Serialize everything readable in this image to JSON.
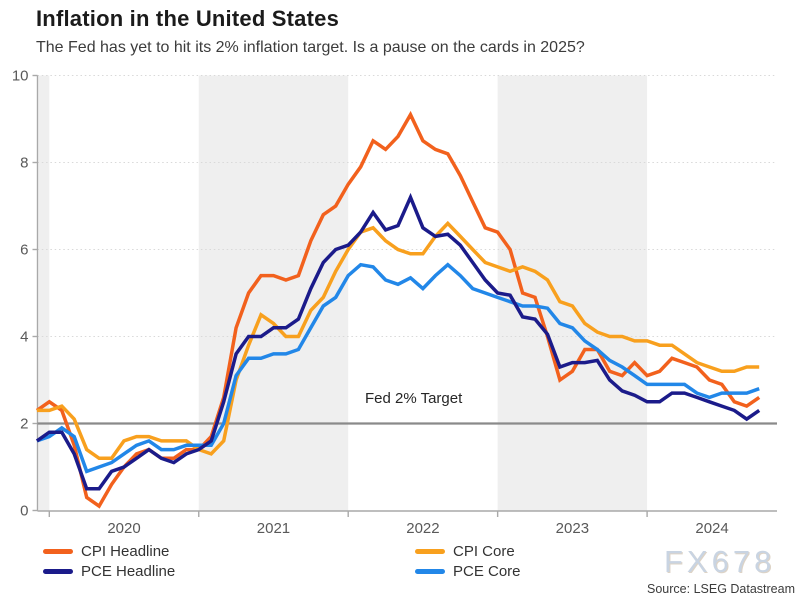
{
  "header": {
    "title": "Inflation in the United States",
    "subtitle": "The Fed has yet to hit its 2% inflation target. Is a pause on the cards in 2025?"
  },
  "chart_data": {
    "type": "line",
    "x_unit": "month",
    "x_start": "2019-12",
    "x_end": "2024-10",
    "x_tick_labels": [
      "2020",
      "2021",
      "2022",
      "2023",
      "2024"
    ],
    "y_ticks": [
      0,
      2,
      4,
      6,
      8,
      10
    ],
    "ylim": [
      0,
      10
    ],
    "grid": "dotted horizontal at 4,6,8,10",
    "shaded_bands": "alternating calendar years shaded light gray (pre-2020, 2021, 2023)",
    "target": {
      "value": 2,
      "label": "Fed 2% Target",
      "color": "#8a8a8a"
    },
    "series": [
      {
        "name": "CPI Headline",
        "color": "#f2611d",
        "values": [
          2.3,
          2.5,
          2.3,
          1.5,
          0.3,
          0.1,
          0.6,
          1.0,
          1.3,
          1.4,
          1.2,
          1.2,
          1.4,
          1.4,
          1.7,
          2.6,
          4.2,
          5.0,
          5.4,
          5.4,
          5.3,
          5.4,
          6.2,
          6.8,
          7.0,
          7.5,
          7.9,
          8.5,
          8.3,
          8.6,
          9.1,
          8.5,
          8.3,
          8.2,
          7.7,
          7.1,
          6.5,
          6.4,
          6.0,
          5.0,
          4.9,
          4.0,
          3.0,
          3.2,
          3.7,
          3.7,
          3.2,
          3.1,
          3.4,
          3.1,
          3.2,
          3.5,
          3.4,
          3.3,
          3.0,
          2.9,
          2.5,
          2.4,
          2.6
        ]
      },
      {
        "name": "PCE Headline",
        "color": "#1b1b8a",
        "values": [
          1.6,
          1.8,
          1.8,
          1.3,
          0.5,
          0.5,
          0.9,
          1.0,
          1.2,
          1.4,
          1.2,
          1.1,
          1.3,
          1.4,
          1.6,
          2.5,
          3.6,
          4.0,
          4.0,
          4.2,
          4.2,
          4.4,
          5.1,
          5.7,
          6.0,
          6.1,
          6.4,
          6.85,
          6.45,
          6.55,
          7.2,
          6.5,
          6.3,
          6.35,
          6.1,
          5.7,
          5.3,
          5.0,
          4.95,
          4.45,
          4.4,
          4.05,
          3.3,
          3.4,
          3.4,
          3.45,
          3.0,
          2.75,
          2.65,
          2.5,
          2.5,
          2.7,
          2.7,
          2.6,
          2.5,
          2.4,
          2.3,
          2.1,
          2.3
        ]
      },
      {
        "name": "CPI Core",
        "color": "#f8a01e",
        "values": [
          2.3,
          2.3,
          2.4,
          2.1,
          1.4,
          1.2,
          1.2,
          1.6,
          1.7,
          1.7,
          1.6,
          1.6,
          1.6,
          1.4,
          1.3,
          1.6,
          3.0,
          3.8,
          4.5,
          4.3,
          4.0,
          4.0,
          4.6,
          4.9,
          5.5,
          6.0,
          6.4,
          6.5,
          6.2,
          6.0,
          5.9,
          5.9,
          6.3,
          6.6,
          6.3,
          6.0,
          5.7,
          5.6,
          5.5,
          5.6,
          5.5,
          5.3,
          4.8,
          4.7,
          4.3,
          4.1,
          4.0,
          4.0,
          3.9,
          3.9,
          3.8,
          3.8,
          3.6,
          3.4,
          3.3,
          3.2,
          3.2,
          3.3,
          3.3
        ]
      },
      {
        "name": "PCE Core",
        "color": "#2287e8",
        "values": [
          1.6,
          1.7,
          1.9,
          1.7,
          0.9,
          1.0,
          1.1,
          1.3,
          1.5,
          1.6,
          1.4,
          1.4,
          1.5,
          1.5,
          1.5,
          2.0,
          3.1,
          3.5,
          3.5,
          3.6,
          3.6,
          3.7,
          4.2,
          4.7,
          4.9,
          5.4,
          5.65,
          5.6,
          5.3,
          5.2,
          5.35,
          5.1,
          5.4,
          5.65,
          5.4,
          5.1,
          5.0,
          4.9,
          4.8,
          4.7,
          4.7,
          4.65,
          4.3,
          4.2,
          3.9,
          3.7,
          3.45,
          3.3,
          3.1,
          2.9,
          2.9,
          2.9,
          2.9,
          2.7,
          2.6,
          2.7,
          2.7,
          2.7,
          2.8
        ]
      }
    ],
    "legend_position": "bottom, two columns"
  },
  "watermark": "FX678",
  "source": "Source: LSEG Datastream"
}
